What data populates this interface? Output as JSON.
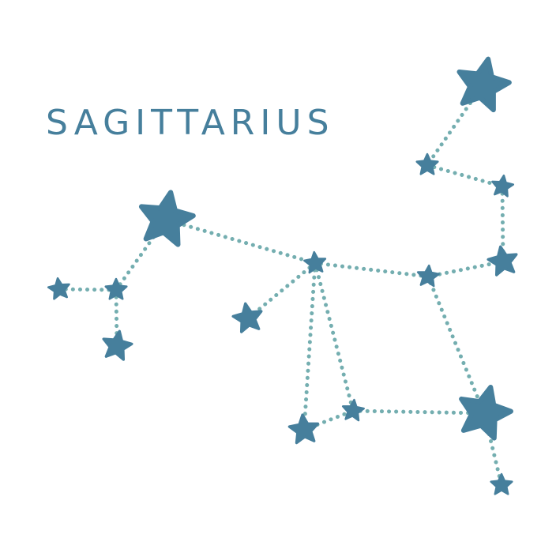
{
  "title": "SAGITTARIUS",
  "colors": {
    "star": "#467f9c",
    "line": "#74aeb0",
    "text": "#467f9c",
    "background": "#ffffff"
  },
  "constellation": {
    "stars": [
      {
        "id": "star-top-right"
      },
      {
        "id": "star-upper-right-small"
      },
      {
        "id": "star-right-small-a"
      },
      {
        "id": "star-right-medium"
      },
      {
        "id": "star-center-right"
      },
      {
        "id": "star-center"
      },
      {
        "id": "star-left-large"
      },
      {
        "id": "star-left-middle"
      },
      {
        "id": "star-far-left"
      },
      {
        "id": "star-left-bottom"
      },
      {
        "id": "star-center-left"
      },
      {
        "id": "star-lower-middle-small"
      },
      {
        "id": "star-lower-left"
      },
      {
        "id": "star-lower-right-large"
      },
      {
        "id": "star-bottom-right-small"
      }
    ],
    "connections": [
      [
        "star-top-right",
        "star-upper-right-small"
      ],
      [
        "star-upper-right-small",
        "star-right-small-a"
      ],
      [
        "star-right-small-a",
        "star-right-medium"
      ],
      [
        "star-right-medium",
        "star-center-right"
      ],
      [
        "star-center-right",
        "star-center"
      ],
      [
        "star-center",
        "star-left-large"
      ],
      [
        "star-left-large",
        "star-left-middle"
      ],
      [
        "star-left-middle",
        "star-far-left"
      ],
      [
        "star-left-middle",
        "star-left-bottom"
      ],
      [
        "star-center",
        "star-center-left"
      ],
      [
        "star-center",
        "star-lower-left"
      ],
      [
        "star-center",
        "star-lower-middle-small"
      ],
      [
        "star-lower-left",
        "star-lower-middle-small"
      ],
      [
        "star-lower-middle-small",
        "star-lower-right-large"
      ],
      [
        "star-center-right",
        "star-lower-right-large"
      ],
      [
        "star-lower-right-large",
        "star-bottom-right-small"
      ]
    ]
  }
}
